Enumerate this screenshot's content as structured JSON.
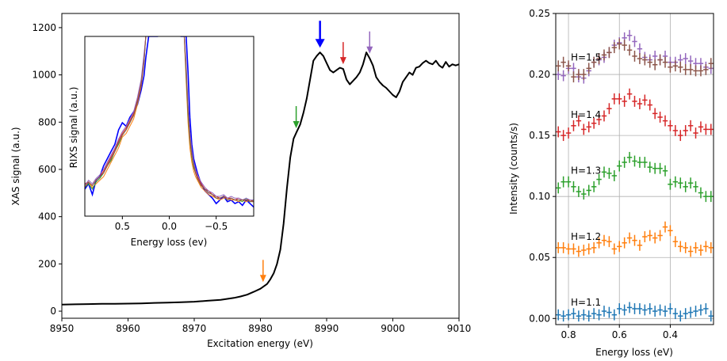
{
  "chart_data": [
    {
      "type": "line",
      "xlabel": "Excitation energy (eV)",
      "ylabel": "XAS signal (a.u.)",
      "xlim": [
        8950,
        9010
      ],
      "ylim": [
        -30,
        1260
      ],
      "xticks": [
        8950,
        8960,
        8970,
        8980,
        8990,
        9000,
        9010
      ],
      "yticks": [
        0,
        200,
        400,
        600,
        800,
        1000,
        1200
      ],
      "grid": false,
      "series": [
        {
          "color": "#000000",
          "x": [
            8950,
            8952,
            8954,
            8956,
            8958,
            8960,
            8962,
            8964,
            8966,
            8968,
            8970,
            8972,
            8974,
            8976,
            8977,
            8978,
            8979,
            8980,
            8980.5,
            8981,
            8981.5,
            8982,
            8982.5,
            8983,
            8983.5,
            8984,
            8984.5,
            8985,
            8985.5,
            8986,
            8986.5,
            8987,
            8987.5,
            8988,
            8988.5,
            8989,
            8989.5,
            8990,
            8990.5,
            8991,
            8991.5,
            8992,
            8992.5,
            8993,
            8993.5,
            8994,
            8994.5,
            8995,
            8995.5,
            8996,
            8996.5,
            8997,
            8997.5,
            8998,
            8998.5,
            8999,
            8999.5,
            9000,
            9000.5,
            9001,
            9001.5,
            9002,
            9002.5,
            9003,
            9003.5,
            9004,
            9004.5,
            9005,
            9005.5,
            9006,
            9006.5,
            9007,
            9007.5,
            9008,
            9008.5,
            9009,
            9009.5,
            9010
          ],
          "y": [
            28,
            29,
            30,
            31,
            31,
            32,
            33,
            35,
            36,
            38,
            40,
            44,
            48,
            56,
            62,
            70,
            82,
            95,
            105,
            115,
            135,
            160,
            200,
            260,
            370,
            520,
            650,
            730,
            760,
            790,
            840,
            900,
            980,
            1060,
            1080,
            1095,
            1080,
            1050,
            1020,
            1010,
            1020,
            1030,
            1025,
            980,
            960,
            975,
            990,
            1010,
            1045,
            1095,
            1070,
            1040,
            990,
            970,
            955,
            945,
            930,
            915,
            905,
            930,
            970,
            990,
            1010,
            1000,
            1030,
            1035,
            1050,
            1060,
            1050,
            1045,
            1060,
            1040,
            1030,
            1055,
            1035,
            1045,
            1040,
            1045
          ]
        }
      ],
      "arrows": [
        {
          "x": 8980.4,
          "color": "#ff7f0e"
        },
        {
          "x": 8985.4,
          "color": "#2ca02c"
        },
        {
          "x": 8989.0,
          "color": "#0000ff"
        },
        {
          "x": 8992.5,
          "color": "#d62728"
        },
        {
          "x": 8996.5,
          "color": "#9467bd"
        }
      ]
    },
    {
      "type": "line",
      "xlabel": "Energy loss (ev)",
      "ylabel": "RIXS signal (a.u.)",
      "xlim": [
        0.9,
        -0.9
      ],
      "ylim": [
        0,
        100
      ],
      "xticks": [
        0.5,
        0.0,
        -0.5
      ],
      "xtick_labels": [
        "0.5",
        "0.0",
        "−0.5"
      ],
      "grid": false,
      "x": [
        0.9,
        0.86,
        0.82,
        0.78,
        0.74,
        0.7,
        0.66,
        0.62,
        0.58,
        0.54,
        0.5,
        0.46,
        0.42,
        0.38,
        0.34,
        0.3,
        0.27,
        0.25,
        0.22,
        0.2,
        0.18,
        0.16,
        0.14,
        0.12
      ],
      "x_right": [
        -0.12,
        -0.14,
        -0.16,
        -0.18,
        -0.2,
        -0.22,
        -0.24,
        -0.26,
        -0.28,
        -0.3,
        -0.34,
        -0.38,
        -0.42,
        -0.46,
        -0.5,
        -0.54,
        -0.58,
        -0.62,
        -0.66,
        -0.7,
        -0.74,
        -0.78,
        -0.82,
        -0.86,
        -0.9
      ],
      "series": [
        {
          "color": "#0000ff",
          "y": [
            15,
            18,
            12,
            20,
            22,
            28,
            32,
            36,
            40,
            48,
            52,
            50,
            55,
            58,
            62,
            70,
            78,
            88,
            100,
            100,
            100,
            100,
            100,
            100
          ],
          "y_right": [
            100,
            100,
            100,
            100,
            80,
            55,
            40,
            32,
            28,
            24,
            18,
            14,
            12,
            10,
            7,
            9,
            11,
            8,
            9,
            7,
            8,
            6,
            9,
            7,
            5
          ]
        },
        {
          "color": "#ff7f0e",
          "y": [
            17,
            19,
            16,
            18,
            20,
            22,
            26,
            30,
            34,
            38,
            44,
            46,
            50,
            54,
            62,
            72,
            85,
            100,
            100,
            100,
            100,
            100,
            100,
            100
          ],
          "y_right": [
            100,
            100,
            100,
            75,
            52,
            38,
            30,
            25,
            22,
            20,
            16,
            14,
            12,
            11,
            10,
            9,
            10,
            10,
            9,
            9,
            8,
            9,
            8,
            9,
            8
          ]
        },
        {
          "color": "#2ca02c",
          "y": [
            16,
            18,
            15,
            19,
            21,
            24,
            28,
            31,
            36,
            40,
            45,
            48,
            52,
            56,
            64,
            74,
            86,
            100,
            100,
            100,
            100,
            100,
            100,
            100
          ],
          "y_right": [
            100,
            100,
            100,
            78,
            56,
            42,
            33,
            27,
            24,
            21,
            17,
            15,
            13,
            12,
            10,
            10,
            11,
            9,
            10,
            9,
            9,
            8,
            10,
            8,
            9
          ]
        },
        {
          "color": "#d62728",
          "y": [
            18,
            19,
            17,
            20,
            22,
            25,
            29,
            33,
            37,
            42,
            46,
            49,
            53,
            57,
            65,
            75,
            88,
            100,
            100,
            100,
            100,
            100,
            100,
            100
          ],
          "y_right": [
            100,
            100,
            100,
            82,
            60,
            45,
            35,
            29,
            25,
            22,
            18,
            15,
            14,
            12,
            11,
            10,
            11,
            10,
            10,
            9,
            10,
            9,
            9,
            9,
            8
          ]
        },
        {
          "color": "#9467bd",
          "y": [
            17,
            20,
            18,
            21,
            23,
            26,
            30,
            34,
            38,
            43,
            47,
            50,
            54,
            58,
            66,
            76,
            90,
            100,
            100,
            100,
            100,
            100,
            100,
            100
          ],
          "y_right": [
            100,
            100,
            100,
            85,
            62,
            47,
            37,
            30,
            26,
            23,
            19,
            16,
            14,
            13,
            11,
            11,
            12,
            10,
            11,
            10,
            10,
            9,
            10,
            9,
            9
          ]
        },
        {
          "color": "#8c564b",
          "y": [
            16,
            19,
            17,
            20,
            22,
            24,
            28,
            32,
            36,
            41,
            45,
            48,
            52,
            56,
            63,
            73,
            86,
            100,
            100,
            100,
            100,
            100,
            100,
            100
          ],
          "y_right": [
            100,
            100,
            100,
            80,
            58,
            43,
            34,
            28,
            24,
            21,
            17,
            15,
            13,
            12,
            10,
            10,
            11,
            9,
            10,
            9,
            9,
            9,
            9,
            8,
            8
          ]
        }
      ]
    },
    {
      "type": "scatter",
      "xlabel": "Energy loss (eV)",
      "ylabel": "Intensity (counts/s)",
      "xlim": [
        0.85,
        0.23
      ],
      "ylim": [
        -0.005,
        0.25
      ],
      "xticks": [
        0.8,
        0.6,
        0.4
      ],
      "yticks": [
        0.0,
        0.05,
        0.1,
        0.15,
        0.2,
        0.25
      ],
      "ytick_labels": [
        "0.00",
        "0.05",
        "0.10",
        "0.15",
        "0.20",
        "0.25"
      ],
      "grid": true,
      "x": [
        0.84,
        0.82,
        0.8,
        0.78,
        0.76,
        0.74,
        0.72,
        0.7,
        0.68,
        0.66,
        0.64,
        0.62,
        0.6,
        0.58,
        0.56,
        0.54,
        0.52,
        0.5,
        0.48,
        0.46,
        0.44,
        0.42,
        0.4,
        0.38,
        0.36,
        0.34,
        0.32,
        0.3,
        0.28,
        0.26,
        0.24
      ],
      "annotations": [
        "H=1.1",
        "H=1.2",
        "H=1.3",
        "H=1.4",
        "H=1.5"
      ],
      "series": [
        {
          "color": "#1f77b4",
          "label": "H=1.1",
          "y": [
            0.003,
            0.002,
            0.003,
            0.004,
            0.002,
            0.003,
            0.002,
            0.004,
            0.003,
            0.006,
            0.005,
            0.003,
            0.008,
            0.007,
            0.009,
            0.008,
            0.008,
            0.007,
            0.008,
            0.006,
            0.007,
            0.006,
            0.008,
            0.004,
            0.002,
            0.004,
            0.005,
            0.006,
            0.007,
            0.008,
            0.002
          ]
        },
        {
          "color": "#ff7f0e",
          "label": "H=1.2",
          "y": [
            0.058,
            0.058,
            0.057,
            0.057,
            0.055,
            0.056,
            0.057,
            0.058,
            0.062,
            0.064,
            0.063,
            0.057,
            0.059,
            0.062,
            0.066,
            0.064,
            0.06,
            0.067,
            0.068,
            0.066,
            0.068,
            0.075,
            0.072,
            0.063,
            0.059,
            0.058,
            0.055,
            0.058,
            0.056,
            0.059,
            0.058
          ]
        },
        {
          "color": "#2ca02c",
          "label": "H=1.3",
          "y": [
            0.107,
            0.112,
            0.112,
            0.108,
            0.104,
            0.102,
            0.105,
            0.108,
            0.114,
            0.12,
            0.119,
            0.117,
            0.125,
            0.128,
            0.132,
            0.129,
            0.128,
            0.128,
            0.124,
            0.123,
            0.123,
            0.121,
            0.11,
            0.112,
            0.111,
            0.108,
            0.111,
            0.108,
            0.103,
            0.1,
            0.1
          ]
        },
        {
          "color": "#d62728",
          "label": "H=1.4",
          "y": [
            0.153,
            0.15,
            0.152,
            0.158,
            0.162,
            0.155,
            0.157,
            0.16,
            0.163,
            0.166,
            0.172,
            0.18,
            0.18,
            0.178,
            0.184,
            0.178,
            0.176,
            0.179,
            0.175,
            0.168,
            0.165,
            0.162,
            0.158,
            0.154,
            0.15,
            0.154,
            0.158,
            0.152,
            0.157,
            0.155,
            0.155
          ]
        },
        {
          "color": "#9467bd",
          "label": "H=1.5",
          "y": [
            0.2,
            0.199,
            0.205,
            0.205,
            0.198,
            0.197,
            0.203,
            0.21,
            0.212,
            0.214,
            0.218,
            0.224,
            0.226,
            0.23,
            0.232,
            0.227,
            0.221,
            0.214,
            0.212,
            0.215,
            0.212,
            0.215,
            0.21,
            0.21,
            0.212,
            0.213,
            0.211,
            0.209,
            0.209,
            0.206,
            0.205
          ]
        },
        {
          "color": "#8c564b",
          "label": "",
          "y": [
            0.207,
            0.21,
            0.207,
            0.198,
            0.2,
            0.2,
            0.205,
            0.21,
            0.213,
            0.216,
            0.218,
            0.222,
            0.225,
            0.224,
            0.22,
            0.215,
            0.213,
            0.212,
            0.21,
            0.208,
            0.212,
            0.21,
            0.206,
            0.207,
            0.206,
            0.204,
            0.204,
            0.203,
            0.203,
            0.204,
            0.209
          ]
        }
      ]
    }
  ]
}
